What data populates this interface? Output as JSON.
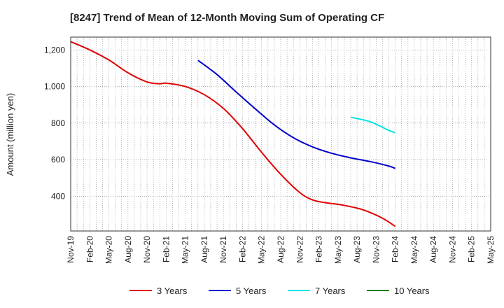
{
  "chart_data": {
    "type": "line",
    "title": "[8247]  Trend of Mean of 12-Month Moving Sum of Operating CF",
    "xlabel": "",
    "ylabel": "Amount (million yen)",
    "ylim": [
      210,
      1270
    ],
    "yticks": [
      400,
      600,
      800,
      1000,
      1200
    ],
    "ytick_labels": [
      "400",
      "600",
      "800",
      "1,000",
      "1,200"
    ],
    "x_range_months": [
      0,
      66
    ],
    "x_tick_labels": [
      "Nov-19",
      "Feb-20",
      "May-20",
      "Aug-20",
      "Nov-20",
      "Feb-21",
      "May-21",
      "Aug-21",
      "Nov-21",
      "Feb-22",
      "May-22",
      "Aug-22",
      "Nov-22",
      "Feb-23",
      "May-23",
      "Aug-23",
      "Nov-23",
      "Feb-24",
      "May-24",
      "Aug-24",
      "Nov-24",
      "Feb-25",
      "May-25"
    ],
    "grid": true,
    "legend_position": "bottom",
    "series": [
      {
        "name": "3 Years",
        "color": "#e00000",
        "points": [
          [
            0,
            1245
          ],
          [
            3,
            1200
          ],
          [
            6,
            1145
          ],
          [
            9,
            1075
          ],
          [
            12,
            1025
          ],
          [
            14,
            1015
          ],
          [
            15,
            1018
          ],
          [
            18,
            1000
          ],
          [
            21,
            955
          ],
          [
            24,
            880
          ],
          [
            27,
            770
          ],
          [
            30,
            640
          ],
          [
            33,
            520
          ],
          [
            36,
            420
          ],
          [
            38,
            380
          ],
          [
            40,
            365
          ],
          [
            43,
            350
          ],
          [
            46,
            325
          ],
          [
            49,
            280
          ],
          [
            51,
            235
          ]
        ]
      },
      {
        "name": "5 Years",
        "color": "#0000cc",
        "points": [
          [
            20,
            1143
          ],
          [
            23,
            1065
          ],
          [
            26,
            970
          ],
          [
            29,
            878
          ],
          [
            32,
            790
          ],
          [
            35,
            720
          ],
          [
            38,
            670
          ],
          [
            41,
            635
          ],
          [
            44,
            610
          ],
          [
            47,
            590
          ],
          [
            50,
            565
          ],
          [
            51,
            552
          ]
        ]
      },
      {
        "name": "7 Years",
        "color": "#00e5e5",
        "points": [
          [
            44,
            832
          ],
          [
            47,
            808
          ],
          [
            50,
            760
          ],
          [
            51,
            747
          ]
        ]
      },
      {
        "name": "10 Years",
        "color": "#008000",
        "points": []
      }
    ]
  }
}
